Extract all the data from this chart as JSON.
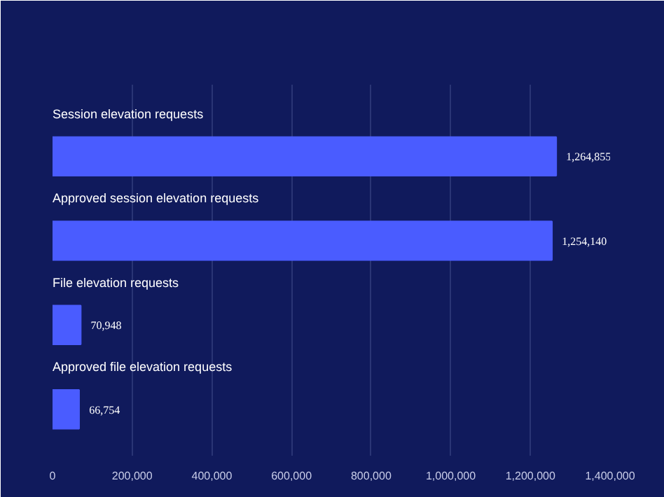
{
  "chart_data": {
    "type": "bar",
    "orientation": "horizontal",
    "categories": [
      "Session elevation requests",
      "Approved session elevation requests",
      "File elevation requests",
      "Approved file elevation requests"
    ],
    "values": [
      1264855,
      1254140,
      70948,
      66754
    ],
    "color": "#4a5cff",
    "value_labels": [
      "1,264,855",
      "1,254,140",
      "70,948",
      "66,754"
    ],
    "xlim": [
      0,
      1400000
    ],
    "xticks": [
      {
        "value": 0,
        "label": "0"
      },
      {
        "value": 200000,
        "label": "200,000"
      },
      {
        "value": 400000,
        "label": "400,000"
      },
      {
        "value": 600000,
        "label": "600,000"
      },
      {
        "value": 800000,
        "label": "800,000"
      },
      {
        "value": 1000000,
        "label": "1,000,000"
      },
      {
        "value": 1200000,
        "label": "1,200,000"
      },
      {
        "value": 1400000,
        "label": "1,400,000"
      }
    ],
    "grid": "x"
  }
}
